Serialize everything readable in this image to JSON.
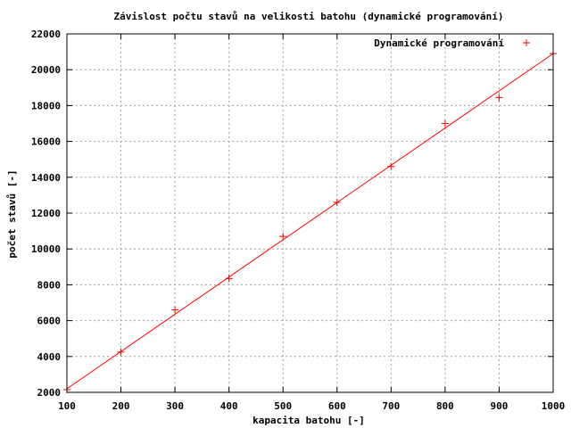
{
  "chart_data": {
    "type": "scatter",
    "title": "Závislost počtu stavů na velikosti batohu (dynamické programování)",
    "xlabel": "kapacita batohu [-]",
    "ylabel": "počet stavů [-]",
    "xlim": [
      100,
      1000
    ],
    "ylim": [
      2000,
      22000
    ],
    "x_ticks": [
      100,
      200,
      300,
      400,
      500,
      600,
      700,
      800,
      900,
      1000
    ],
    "y_ticks": [
      2000,
      4000,
      6000,
      8000,
      10000,
      12000,
      14000,
      16000,
      18000,
      20000,
      22000
    ],
    "grid": true,
    "legend_position": "top-right",
    "colors": {
      "series": "#ff0000",
      "grid": "#a0a0a0",
      "axes": "#000000"
    },
    "series": [
      {
        "name": "Dynamické programování",
        "marker": "plus",
        "x": [
          100,
          200,
          300,
          400,
          500,
          600,
          700,
          800,
          900,
          1000
        ],
        "y": [
          2150,
          4250,
          6600,
          8350,
          10700,
          12600,
          14600,
          17000,
          18450,
          20900
        ]
      }
    ],
    "fit_line": {
      "x": [
        100,
        1000
      ],
      "y": [
        2200,
        20900
      ]
    }
  }
}
